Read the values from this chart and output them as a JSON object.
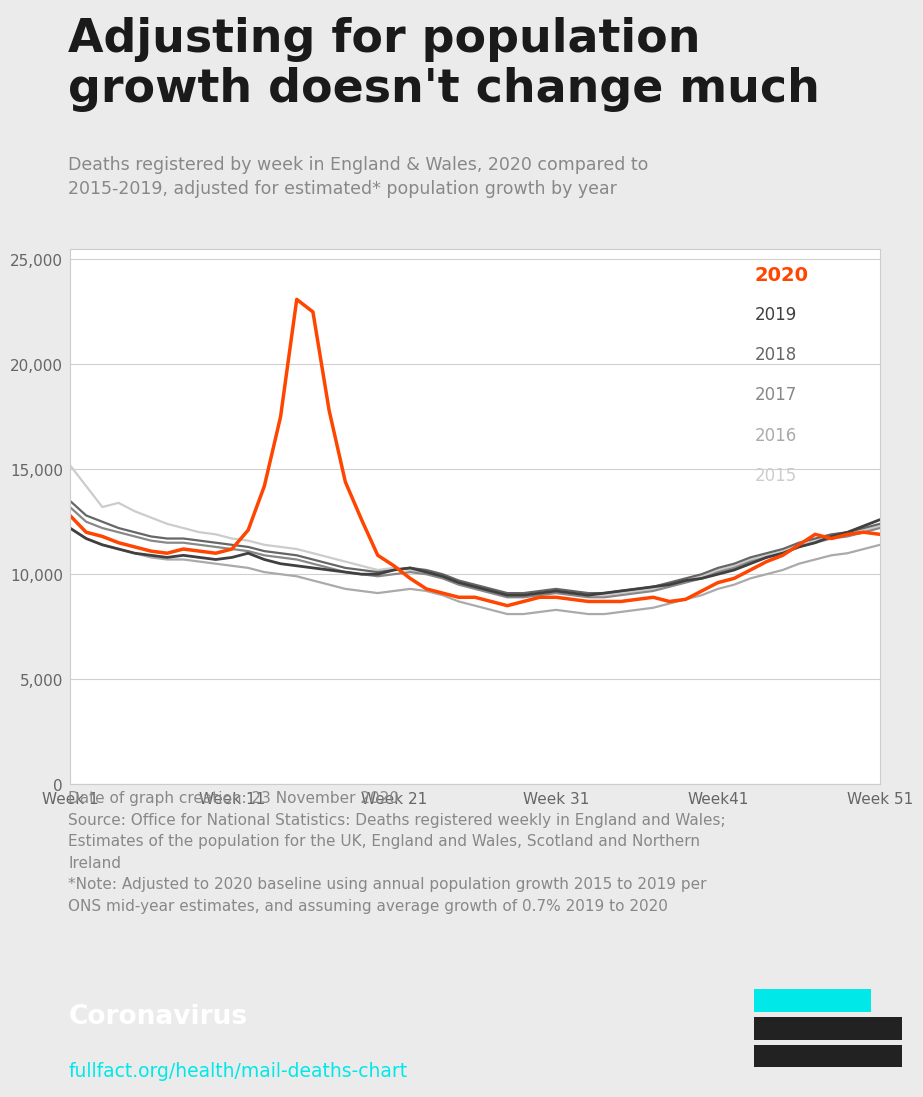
{
  "title_line1": "Adjusting for population",
  "title_line2": "growth doesn't change much",
  "subtitle": "Deaths registered by week in England & Wales, 2020 compared to\n2015-2019, adjusted for estimated* population growth by year",
  "title_color": "#1a1a1a",
  "subtitle_color": "#888888",
  "background_color": "#ebebeb",
  "chart_background": "#ffffff",
  "footer_bg": "#222222",
  "footer_text_color": "#ffffff",
  "footer_cyan": "#00e8e8",
  "date_source_text": "Date of graph creation: 23 November 2020\nSource: Office for National Statistics: Deaths registered weekly in England and Wales;\nEstimates of the population for the UK, England and Wales, Scotland and Northern\nIreland\n*Note: Adjusted to 2020 baseline using annual population growth 2015 to 2019 per\nONS mid-year estimates, and assuming average growth of 0.7% 2019 to 2020",
  "date_source_color": "#888888",
  "weeks": [
    1,
    2,
    3,
    4,
    5,
    6,
    7,
    8,
    9,
    10,
    11,
    12,
    13,
    14,
    15,
    16,
    17,
    18,
    19,
    20,
    21,
    22,
    23,
    24,
    25,
    26,
    27,
    28,
    29,
    30,
    31,
    32,
    33,
    34,
    35,
    36,
    37,
    38,
    39,
    40,
    41,
    42,
    43,
    44,
    45,
    46,
    47,
    48,
    49,
    50,
    51
  ],
  "data_2020": [
    12800,
    12000,
    11800,
    11500,
    11300,
    11100,
    11000,
    11200,
    11100,
    11000,
    11200,
    12100,
    14200,
    17500,
    23100,
    22500,
    17800,
    14400,
    12600,
    10900,
    10400,
    9800,
    9300,
    9100,
    8900,
    8900,
    8700,
    8500,
    8700,
    8900,
    8900,
    8800,
    8700,
    8700,
    8700,
    8800,
    8900,
    8700,
    8800,
    9200,
    9600,
    9800,
    10200,
    10600,
    10900,
    11400,
    11900,
    11700,
    11900,
    12000,
    11900
  ],
  "data_2019": [
    12200,
    11700,
    11400,
    11200,
    11000,
    10900,
    10800,
    10900,
    10800,
    10700,
    10800,
    11000,
    10700,
    10500,
    10400,
    10300,
    10200,
    10100,
    10000,
    10000,
    10200,
    10300,
    10100,
    9900,
    9600,
    9400,
    9200,
    9000,
    9000,
    9100,
    9200,
    9100,
    9000,
    9100,
    9200,
    9300,
    9400,
    9500,
    9700,
    9800,
    10000,
    10200,
    10500,
    10800,
    11000,
    11300,
    11500,
    11800,
    12000,
    12300,
    12600
  ],
  "data_2018": [
    13500,
    12800,
    12500,
    12200,
    12000,
    11800,
    11700,
    11700,
    11600,
    11500,
    11400,
    11300,
    11100,
    11000,
    10900,
    10700,
    10500,
    10300,
    10200,
    10100,
    10200,
    10300,
    10200,
    10000,
    9700,
    9500,
    9300,
    9100,
    9100,
    9200,
    9300,
    9200,
    9100,
    9100,
    9200,
    9300,
    9400,
    9600,
    9800,
    10000,
    10300,
    10500,
    10800,
    11000,
    11200,
    11500,
    11700,
    11900,
    12000,
    12200,
    12400
  ],
  "data_2017": [
    13200,
    12500,
    12200,
    12000,
    11800,
    11600,
    11500,
    11500,
    11400,
    11300,
    11200,
    11100,
    10900,
    10800,
    10700,
    10500,
    10300,
    10100,
    10000,
    9900,
    10000,
    10100,
    10000,
    9800,
    9500,
    9300,
    9100,
    8900,
    8900,
    9000,
    9100,
    9000,
    8900,
    8900,
    9000,
    9100,
    9200,
    9400,
    9600,
    9800,
    10100,
    10300,
    10600,
    10800,
    11000,
    11300,
    11500,
    11700,
    11800,
    12000,
    12200
  ],
  "data_2016": [
    12200,
    11700,
    11400,
    11200,
    11000,
    10800,
    10700,
    10700,
    10600,
    10500,
    10400,
    10300,
    10100,
    10000,
    9900,
    9700,
    9500,
    9300,
    9200,
    9100,
    9200,
    9300,
    9200,
    9000,
    8700,
    8500,
    8300,
    8100,
    8100,
    8200,
    8300,
    8200,
    8100,
    8100,
    8200,
    8300,
    8400,
    8600,
    8800,
    9000,
    9300,
    9500,
    9800,
    10000,
    10200,
    10500,
    10700,
    10900,
    11000,
    11200,
    11400
  ],
  "data_2015": [
    15200,
    14200,
    13200,
    13400,
    13000,
    12700,
    12400,
    12200,
    12000,
    11900,
    11700,
    11600,
    11400,
    11300,
    11200,
    11000,
    10800,
    10600,
    10400,
    10200,
    10300,
    10200,
    10100,
    9900,
    9600,
    9400,
    9200,
    9000,
    9000,
    9100,
    9200,
    9100,
    9000,
    9000,
    9100,
    9200,
    9300,
    9500,
    9700,
    9900,
    10200,
    10400,
    10700,
    10900,
    11100,
    11400,
    11600,
    11800,
    11900,
    12100,
    12300
  ],
  "color_2020": "#ff4500",
  "color_2019": "#404040",
  "color_2018": "#666666",
  "color_2017": "#888888",
  "color_2016": "#aaaaaa",
  "color_2015": "#cccccc",
  "lw_2020": 2.5,
  "lw_2019": 2.0,
  "lw_others": 1.6,
  "ylim": [
    0,
    25500
  ],
  "yticks": [
    0,
    5000,
    10000,
    15000,
    20000,
    25000
  ],
  "xtick_positions": [
    1,
    11,
    21,
    31,
    41,
    51
  ],
  "xtick_labels": [
    "Week 1",
    "Week 11",
    "Week 21",
    "Week 31",
    "Week41",
    "Week 51"
  ],
  "legend_labels": [
    "2020",
    "2019",
    "2018",
    "2017",
    "2016",
    "2015"
  ],
  "legend_colors": [
    "#ff4500",
    "#404040",
    "#666666",
    "#888888",
    "#aaaaaa",
    "#cccccc"
  ],
  "coronavirus_text": "Coronavirus",
  "url_text": "fullfact.org/health/mail-deaths-chart"
}
